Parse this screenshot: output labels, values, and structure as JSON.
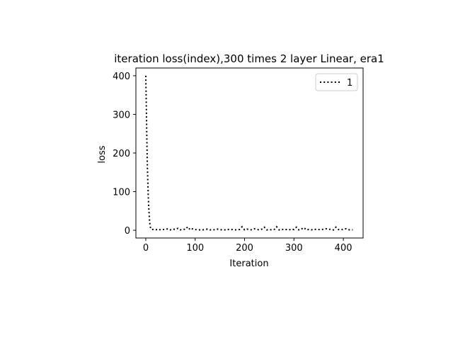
{
  "chart_data": {
    "type": "line",
    "title": "iteration loss(index),300 times 2 layer Linear, era1",
    "xlabel": "Iteration",
    "ylabel": "loss",
    "xlim": [
      -20,
      440
    ],
    "ylim": [
      -20,
      420
    ],
    "xticks": [
      0,
      100,
      200,
      300,
      400
    ],
    "yticks": [
      0,
      100,
      200,
      300,
      400
    ],
    "grid": false,
    "legend": {
      "position": "top-right",
      "entries": [
        "1"
      ]
    },
    "series": [
      {
        "name": "1",
        "color": "#000000",
        "linestyle": "dotted",
        "x": [
          0,
          1,
          2,
          3,
          4,
          5,
          6,
          7,
          8,
          9,
          10,
          11,
          12,
          15,
          20,
          25,
          30,
          35,
          40,
          45,
          50,
          55,
          60,
          65,
          70,
          75,
          80,
          85,
          90,
          95,
          100,
          105,
          110,
          115,
          120,
          125,
          130,
          135,
          140,
          145,
          150,
          155,
          160,
          165,
          170,
          175,
          180,
          185,
          190,
          195,
          200,
          205,
          210,
          215,
          220,
          225,
          230,
          235,
          240,
          245,
          250,
          255,
          260,
          265,
          270,
          275,
          280,
          285,
          290,
          295,
          300,
          305,
          310,
          315,
          320,
          325,
          330,
          335,
          340,
          345,
          350,
          355,
          360,
          365,
          370,
          375,
          380,
          385,
          390,
          395,
          400,
          405,
          410,
          415,
          419
        ],
        "y": [
          400,
          330,
          250,
          180,
          130,
          90,
          60,
          38,
          20,
          10,
          5,
          3,
          2,
          2,
          1,
          3,
          1,
          2,
          2,
          4,
          1,
          3,
          2,
          5,
          1,
          3,
          2,
          9,
          1,
          4,
          2,
          1,
          1,
          1,
          2,
          3,
          1,
          2,
          1,
          3,
          2,
          1,
          1,
          3,
          1,
          2,
          1,
          1,
          2,
          9,
          1,
          3,
          2,
          1,
          4,
          2,
          1,
          3,
          8,
          1,
          2,
          1,
          2,
          9,
          1,
          3,
          1,
          2,
          1,
          3,
          2,
          8,
          1,
          3,
          7,
          1,
          2,
          1,
          3,
          2,
          2,
          1,
          3,
          4,
          2,
          3,
          1,
          8,
          2,
          1,
          3,
          4,
          1,
          2,
          1
        ]
      }
    ]
  }
}
